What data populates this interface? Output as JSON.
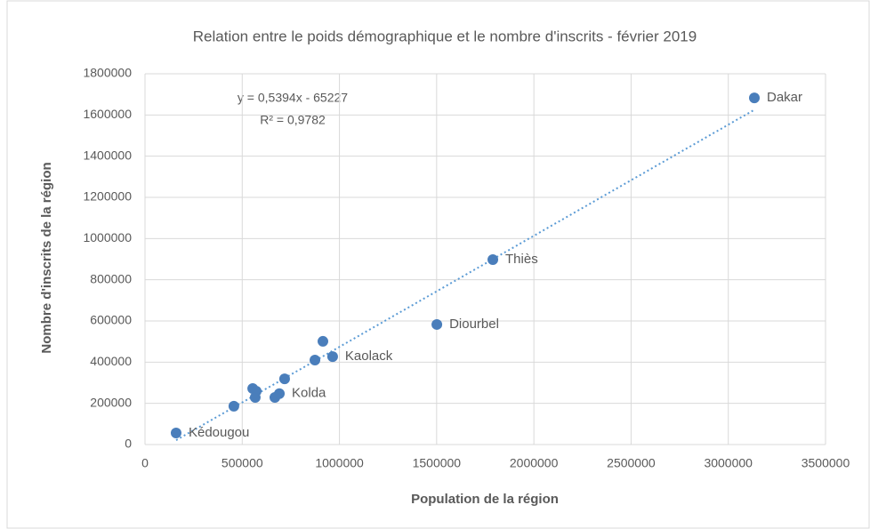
{
  "chart_data": {
    "type": "scatter",
    "title": "Relation entre le poids démographique et le nombre d'inscrits - février 2019",
    "x_label": "Population de la région",
    "y_label": "Nombre d'inscrits de la région",
    "color": "#4a7ebb",
    "x": [
      160000,
      457000,
      554000,
      572000,
      567000,
      668000,
      691000,
      718000,
      874000,
      915000,
      965000,
      1501000,
      1789000,
      3134000
    ],
    "y": [
      56000,
      186000,
      272000,
      259000,
      229000,
      229000,
      247000,
      319000,
      410000,
      501000,
      427000,
      583000,
      898000,
      1683000
    ],
    "labels": [
      "Kédougou",
      null,
      null,
      null,
      null,
      null,
      "Kolda",
      null,
      null,
      null,
      "Kaolack",
      "Diourbel",
      "Thiès",
      "Dakar"
    ],
    "trendline": {
      "slope": 0.5394,
      "intercept": -65227,
      "equation": "y = 0,5394x - 65227",
      "r2": "R² = 0,9782"
    },
    "xlim": [
      0,
      3500000
    ],
    "xticks": [
      0,
      500000,
      1000000,
      1500000,
      2000000,
      2500000,
      3000000,
      3500000
    ],
    "ylim": [
      0,
      1800000
    ],
    "yticks": [
      0,
      200000,
      400000,
      600000,
      800000,
      1000000,
      1200000,
      1400000,
      1600000,
      1800000
    ],
    "grid": true
  }
}
